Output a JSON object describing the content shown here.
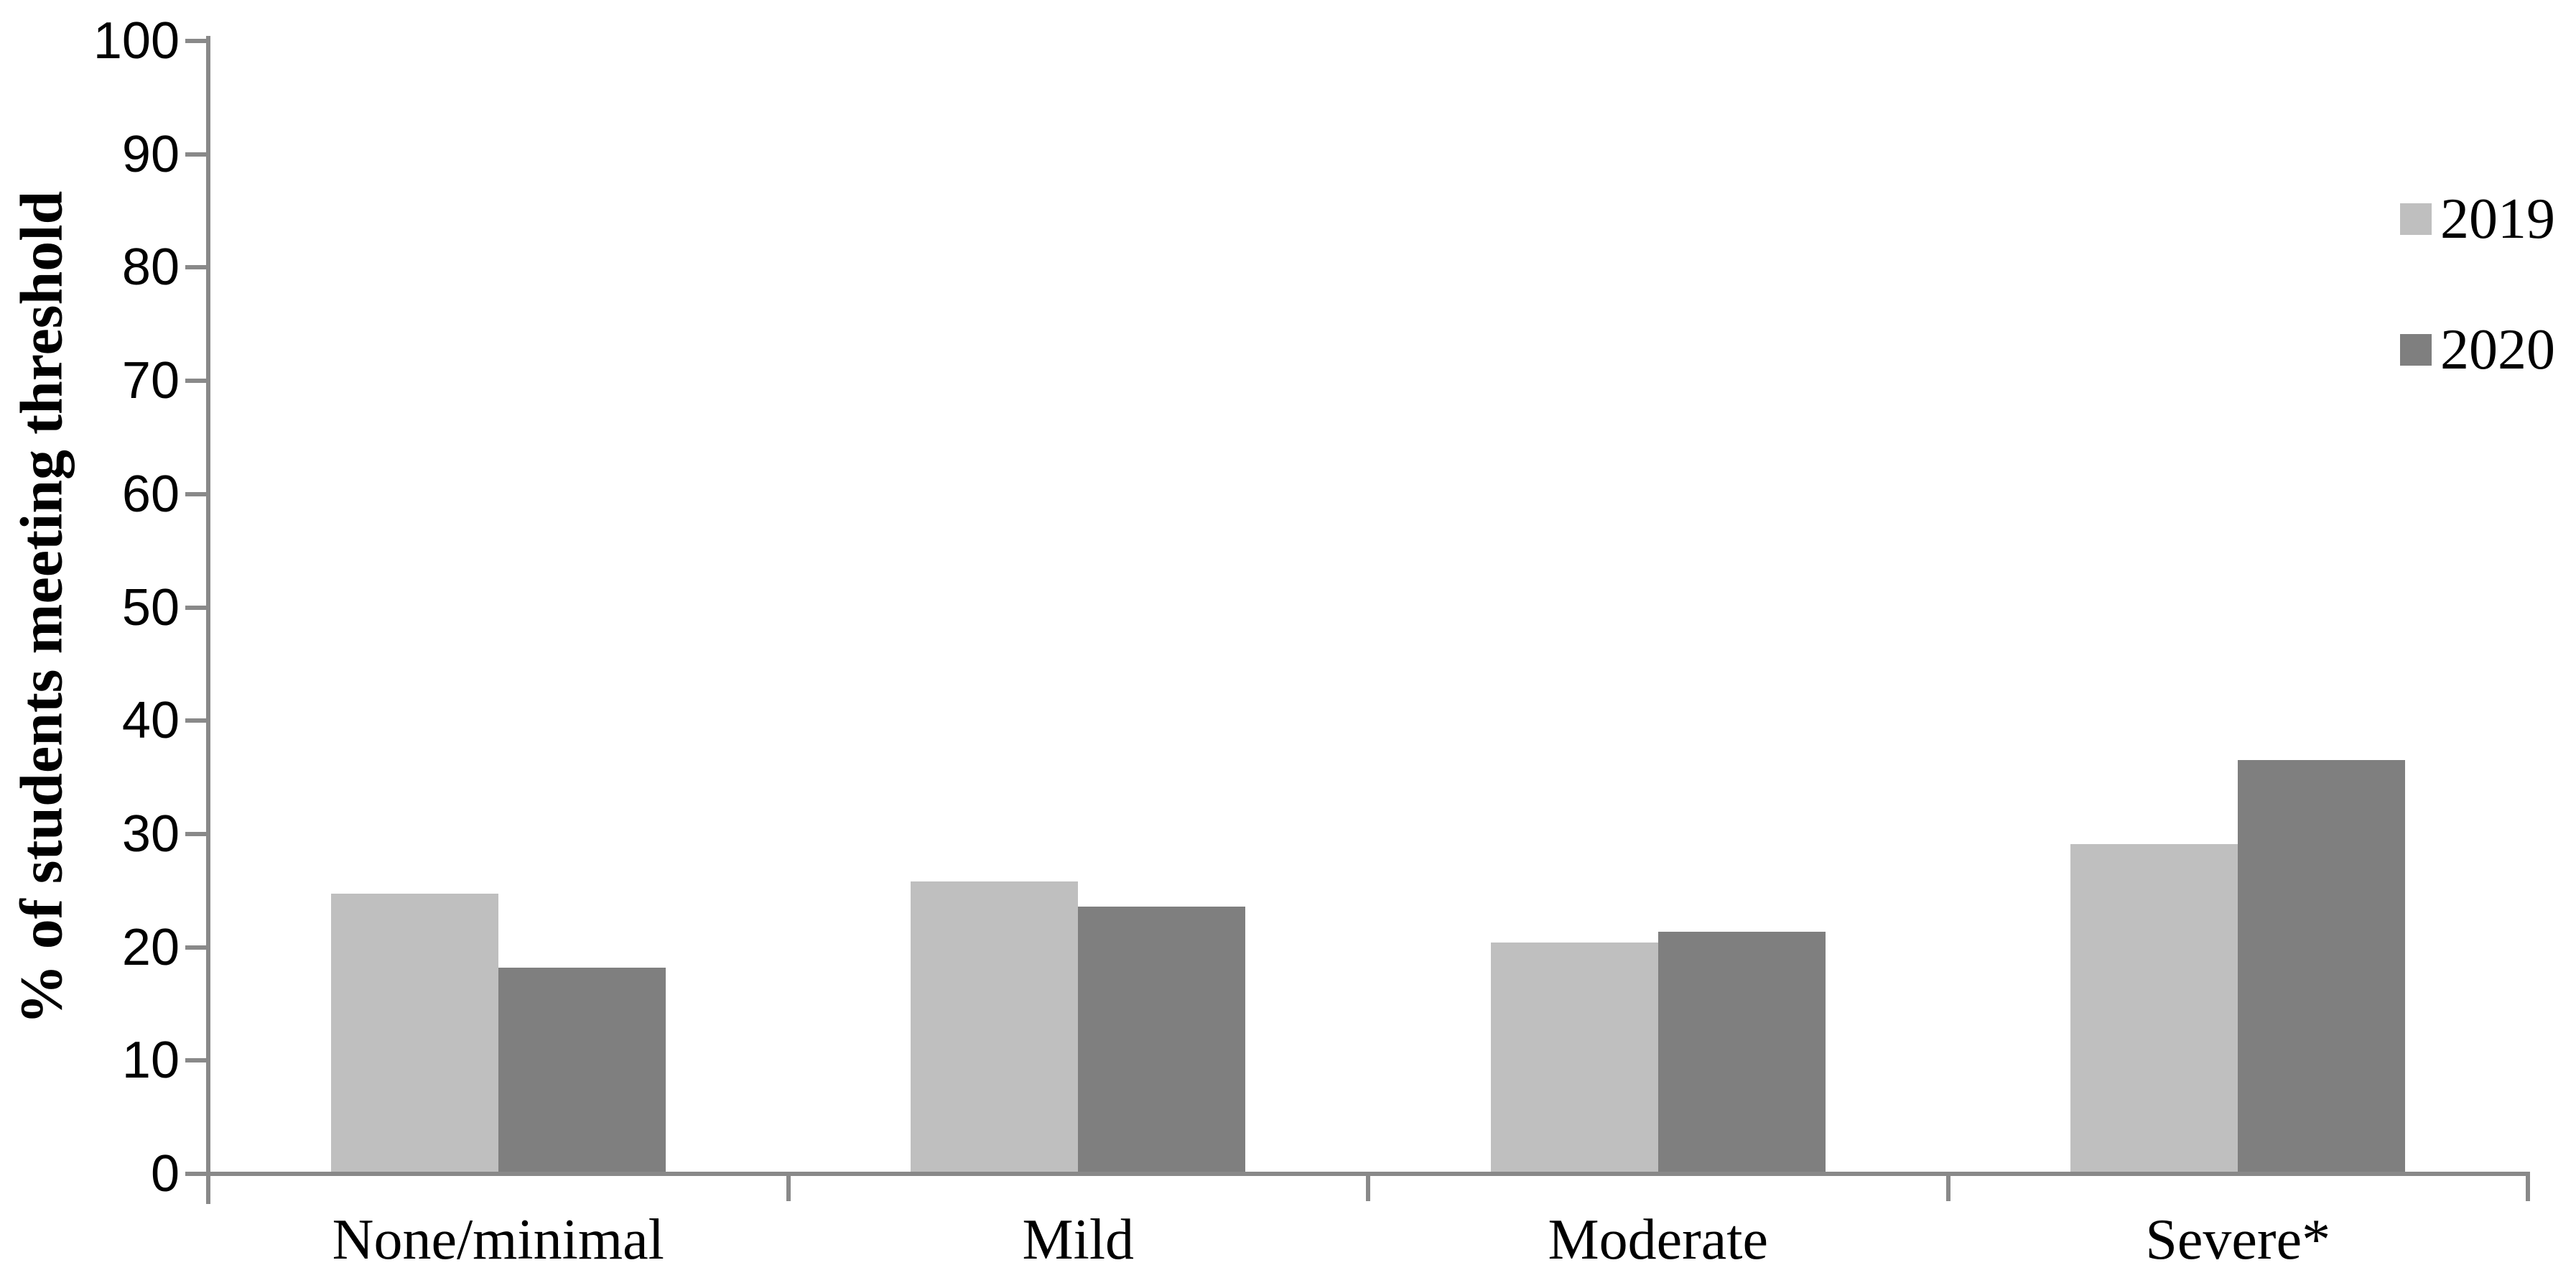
{
  "chart_data": {
    "type": "bar",
    "title": "",
    "xlabel": "",
    "ylabel": "% of students meeting threshold",
    "categories": [
      "None/minimal",
      "Mild",
      "Moderate",
      "Severe*"
    ],
    "series": [
      {
        "name": "2019",
        "color": "#bfbfbf",
        "values": [
          24.7,
          25.8,
          20.4,
          29.1
        ]
      },
      {
        "name": "2020",
        "color": "#7f7f7f",
        "values": [
          18.2,
          23.6,
          21.4,
          36.5
        ]
      }
    ],
    "ylim": [
      0,
      100
    ],
    "yticks": [
      0,
      10,
      20,
      30,
      40,
      50,
      60,
      70,
      80,
      90,
      100
    ],
    "grid": false,
    "legend_position": "top-right",
    "axis_color": "#898989",
    "text_color": "#000000",
    "background_color": "#ffffff"
  }
}
